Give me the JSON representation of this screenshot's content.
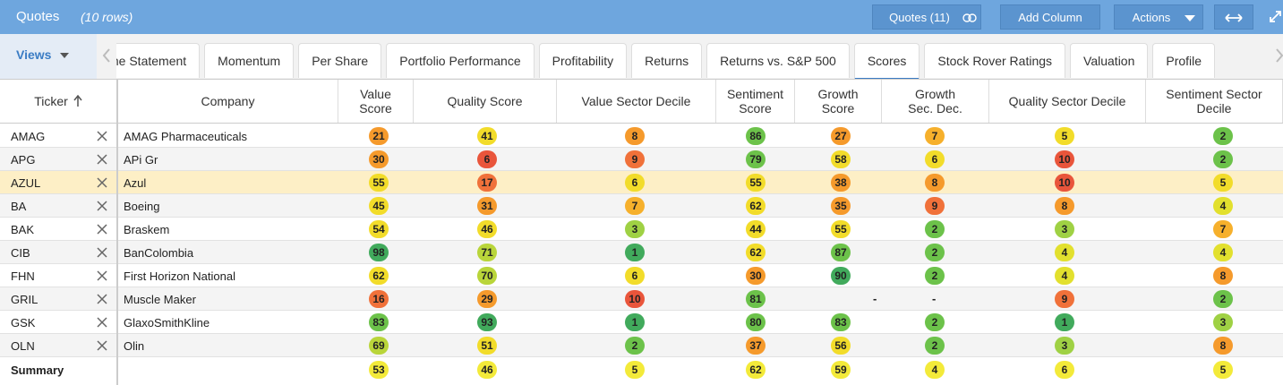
{
  "toolbar": {
    "title": "Quotes",
    "row_count": "(10 rows)",
    "buttons": [
      "Quotes (11)",
      "Add Column",
      "Actions"
    ]
  },
  "views": "Views",
  "tabs": [
    "me Statement",
    "Momentum",
    "Per Share",
    "Portfolio Performance",
    "Profitability",
    "Returns",
    "Returns vs. S&P 500",
    "Scores",
    "Stock Rover Ratings",
    "Valuation",
    "Profile"
  ],
  "active_tab": 7,
  "columns": [
    "Ticker",
    "Company",
    "Value Score",
    "Quality Score",
    "Value Sector Decile",
    "Sentiment Score",
    "Growth Score",
    "Growth Sec. Dec.",
    "Quality Sector Decile",
    "Sentiment Sector Decile"
  ],
  "rows": [
    {
      "ticker": "AMAG",
      "company": "AMAG Pharmaceuticals",
      "scores": [
        21,
        41,
        8,
        86,
        27,
        7,
        5,
        2
      ]
    },
    {
      "ticker": "APG",
      "company": "APi Gr",
      "scores": [
        30,
        6,
        9,
        79,
        58,
        6,
        10,
        2
      ]
    },
    {
      "ticker": "AZUL",
      "company": "Azul",
      "scores": [
        55,
        17,
        6,
        55,
        38,
        8,
        10,
        5
      ],
      "highlighted": true
    },
    {
      "ticker": "BA",
      "company": "Boeing",
      "scores": [
        45,
        31,
        7,
        62,
        35,
        9,
        8,
        4
      ]
    },
    {
      "ticker": "BAK",
      "company": "Braskem",
      "scores": [
        54,
        46,
        3,
        44,
        55,
        2,
        3,
        7
      ]
    },
    {
      "ticker": "CIB",
      "company": "BanColombia",
      "scores": [
        98,
        71,
        1,
        62,
        87,
        2,
        4,
        4
      ]
    },
    {
      "ticker": "FHN",
      "company": "First Horizon National",
      "scores": [
        62,
        70,
        6,
        30,
        90,
        2,
        4,
        8
      ]
    },
    {
      "ticker": "GRIL",
      "company": "Muscle Maker",
      "scores": [
        16,
        29,
        10,
        81,
        "-",
        "-",
        9,
        2
      ]
    },
    {
      "ticker": "GSK",
      "company": "GlaxoSmithKline",
      "scores": [
        83,
        93,
        1,
        80,
        83,
        2,
        1,
        3
      ]
    },
    {
      "ticker": "OLN",
      "company": "Olin",
      "scores": [
        69,
        51,
        2,
        37,
        56,
        2,
        3,
        8
      ]
    }
  ],
  "summary": {
    "label": "Summary",
    "scores": [
      53,
      46,
      5,
      62,
      59,
      4,
      6,
      5
    ]
  }
}
